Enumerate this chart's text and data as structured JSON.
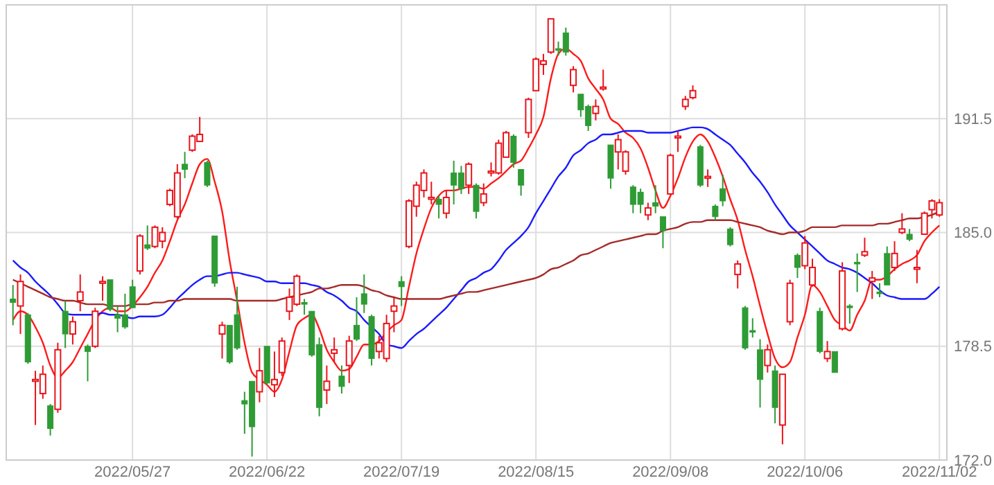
{
  "chart_data": {
    "type": "candlestick",
    "categories": [
      null,
      null,
      null,
      null,
      null,
      null,
      null,
      null,
      null,
      null,
      null,
      null,
      null,
      null,
      null,
      null,
      "2022/05/27",
      null,
      null,
      null,
      null,
      null,
      null,
      null,
      null,
      null,
      null,
      null,
      null,
      null,
      null,
      null,
      null,
      null,
      "2022/06/22",
      null,
      null,
      null,
      null,
      null,
      null,
      null,
      null,
      null,
      null,
      null,
      null,
      null,
      null,
      null,
      null,
      null,
      "2022/07/19",
      null,
      null,
      null,
      null,
      null,
      null,
      null,
      null,
      null,
      null,
      null,
      null,
      null,
      null,
      null,
      null,
      null,
      "2022/08/15",
      null,
      null,
      null,
      null,
      null,
      null,
      null,
      null,
      null,
      null,
      null,
      null,
      null,
      null,
      null,
      null,
      null,
      "2022/09/08",
      null,
      null,
      null,
      null,
      null,
      null,
      null,
      null,
      null,
      null,
      null,
      null,
      null,
      null,
      null,
      null,
      null,
      "2022/10/06",
      null,
      null,
      null,
      null,
      null,
      null,
      null,
      null,
      null,
      null,
      null,
      null,
      null,
      null,
      null,
      null,
      null,
      "2022/11/02"
    ],
    "ohlc": [
      [
        181.2,
        182.0,
        179.7,
        181.0
      ],
      [
        180.8,
        182.6,
        179.2,
        182.2
      ],
      [
        180.3,
        180.4,
        177.5,
        177.6
      ],
      [
        176.5,
        177.1,
        174.0,
        176.6
      ],
      [
        175.8,
        177.4,
        175.5,
        176.9
      ],
      [
        175.1,
        175.2,
        173.4,
        173.8
      ],
      [
        174.9,
        178.7,
        174.7,
        178.3
      ],
      [
        180.5,
        181.1,
        178.4,
        179.2
      ],
      [
        179.2,
        180.2,
        178.6,
        179.9
      ],
      [
        181.1,
        182.6,
        180.5,
        181.6
      ],
      [
        178.5,
        178.6,
        176.5,
        178.2
      ],
      [
        178.5,
        180.7,
        178.4,
        180.5
      ],
      [
        182.1,
        182.5,
        181.1,
        182.2
      ],
      [
        182.3,
        182.3,
        180.5,
        180.6
      ],
      [
        180.3,
        180.8,
        179.3,
        180.1
      ],
      [
        180.3,
        181.5,
        179.5,
        179.6
      ],
      [
        181.9,
        182.3,
        180.7,
        180.7
      ],
      [
        182.8,
        184.9,
        182.6,
        184.8
      ],
      [
        184.3,
        185.4,
        184.0,
        184.1
      ],
      [
        184.2,
        185.4,
        184.1,
        185.3
      ],
      [
        184.5,
        185.3,
        184.1,
        185.0
      ],
      [
        186.6,
        187.5,
        186.5,
        187.4
      ],
      [
        185.9,
        188.9,
        185.8,
        188.4
      ],
      [
        188.9,
        189.6,
        188.1,
        188.6
      ],
      [
        189.7,
        190.6,
        189.6,
        190.5
      ],
      [
        190.2,
        191.6,
        190.2,
        190.6
      ],
      [
        189.0,
        189.1,
        187.6,
        187.7
      ],
      [
        184.8,
        184.8,
        181.9,
        182.1
      ],
      [
        179.2,
        179.9,
        177.8,
        179.7
      ],
      [
        179.7,
        179.7,
        177.5,
        177.6
      ],
      [
        180.3,
        181.9,
        178.3,
        178.4
      ],
      [
        175.4,
        175.9,
        173.5,
        175.2
      ],
      [
        176.5,
        176.5,
        172.2,
        173.9
      ],
      [
        175.9,
        178.4,
        175.3,
        177.1
      ],
      [
        178.5,
        178.5,
        176.3,
        176.4
      ],
      [
        176.3,
        178.2,
        175.6,
        176.6
      ],
      [
        177.0,
        179.0,
        176.8,
        178.8
      ],
      [
        180.5,
        181.8,
        180.0,
        181.3
      ],
      [
        180.9,
        182.6,
        180.8,
        182.5
      ],
      [
        181.0,
        181.2,
        180.3,
        180.9
      ],
      [
        180.5,
        180.5,
        177.9,
        178.0
      ],
      [
        178.6,
        179.0,
        174.5,
        175.0
      ],
      [
        176.0,
        177.4,
        175.2,
        176.5
      ],
      [
        178.1,
        179.0,
        177.6,
        178.3
      ],
      [
        176.8,
        177.4,
        175.8,
        176.2
      ],
      [
        177.4,
        179.1,
        176.4,
        178.8
      ],
      [
        179.7,
        181.3,
        178.8,
        178.9
      ],
      [
        181.5,
        182.6,
        180.4,
        180.9
      ],
      [
        180.2,
        180.3,
        177.4,
        177.8
      ],
      [
        178.2,
        179.1,
        177.8,
        178.7
      ],
      [
        177.8,
        180.3,
        177.6,
        179.8
      ],
      [
        180.5,
        181.3,
        179.3,
        180.8
      ],
      [
        182.2,
        182.5,
        180.8,
        181.9
      ],
      [
        184.2,
        186.9,
        184.1,
        186.8
      ],
      [
        186.5,
        187.9,
        185.9,
        187.7
      ],
      [
        187.4,
        188.6,
        187.0,
        188.4
      ],
      [
        186.9,
        187.9,
        186.6,
        187.0
      ],
      [
        186.9,
        187.1,
        185.8,
        186.6
      ],
      [
        186.1,
        187.4,
        185.8,
        187.0
      ],
      [
        188.4,
        189.1,
        186.6,
        187.7
      ],
      [
        188.4,
        188.8,
        187.2,
        187.5
      ],
      [
        187.7,
        189.0,
        187.2,
        188.9
      ],
      [
        187.7,
        187.8,
        185.8,
        186.2
      ],
      [
        186.7,
        187.8,
        186.5,
        187.2
      ],
      [
        188.4,
        189.0,
        188.2,
        188.5
      ],
      [
        188.4,
        190.3,
        188.3,
        190.1
      ],
      [
        189.3,
        190.8,
        189.3,
        190.7
      ],
      [
        190.5,
        190.6,
        188.7,
        189.0
      ],
      [
        188.6,
        188.6,
        187.1,
        187.7
      ],
      [
        190.7,
        192.7,
        190.4,
        192.6
      ],
      [
        193.1,
        195.0,
        193.1,
        194.9
      ],
      [
        194.6,
        195.2,
        194.0,
        194.8
      ],
      [
        195.3,
        197.2,
        195.2,
        197.2
      ],
      [
        195.5,
        195.9,
        195.1,
        195.4
      ],
      [
        196.4,
        196.7,
        195.1,
        195.3
      ],
      [
        193.4,
        194.5,
        193.0,
        194.3
      ],
      [
        192.9,
        192.9,
        191.6,
        192.0
      ],
      [
        192.2,
        192.3,
        190.8,
        191.1
      ],
      [
        191.8,
        192.6,
        191.4,
        192.2
      ],
      [
        193.2,
        194.3,
        193.1,
        193.3
      ],
      [
        190.0,
        190.0,
        187.5,
        188.1
      ],
      [
        189.6,
        190.6,
        188.6,
        190.3
      ],
      [
        188.5,
        189.7,
        188.3,
        189.6
      ],
      [
        187.6,
        187.7,
        186.1,
        186.6
      ],
      [
        187.3,
        187.5,
        186.1,
        186.6
      ],
      [
        186.0,
        186.7,
        185.7,
        186.4
      ],
      [
        186.7,
        187.7,
        186.1,
        186.5
      ],
      [
        185.9,
        185.9,
        184.1,
        185.1
      ],
      [
        187.2,
        189.5,
        187.2,
        189.4
      ],
      [
        190.4,
        190.8,
        189.6,
        190.5
      ],
      [
        192.2,
        192.8,
        192.0,
        192.6
      ],
      [
        192.7,
        193.4,
        192.6,
        193.1
      ],
      [
        189.9,
        190.0,
        187.6,
        187.7
      ],
      [
        188.1,
        188.6,
        187.6,
        188.2
      ],
      [
        186.5,
        186.6,
        185.7,
        185.9
      ],
      [
        187.5,
        188.3,
        186.5,
        186.8
      ],
      [
        185.2,
        185.3,
        184.2,
        184.3
      ],
      [
        182.6,
        183.4,
        181.8,
        183.2
      ],
      [
        180.7,
        180.8,
        178.3,
        178.4
      ],
      [
        179.4,
        180.1,
        179.0,
        179.3
      ],
      [
        178.3,
        178.9,
        175.0,
        176.6
      ],
      [
        177.4,
        178.6,
        177.0,
        178.3
      ],
      [
        177.1,
        177.4,
        174.1,
        175.0
      ],
      [
        174.0,
        176.9,
        172.9,
        176.9
      ],
      [
        179.9,
        182.3,
        179.7,
        182.1
      ],
      [
        183.7,
        183.8,
        182.4,
        183.0
      ],
      [
        183.1,
        184.8,
        182.9,
        184.4
      ],
      [
        182.0,
        183.5,
        181.9,
        183.0
      ],
      [
        180.5,
        180.7,
        178.1,
        178.2
      ],
      [
        177.8,
        178.8,
        177.6,
        178.2
      ],
      [
        178.2,
        178.2,
        177.0,
        177.0
      ],
      [
        179.5,
        183.3,
        179.4,
        182.8
      ],
      [
        180.8,
        180.9,
        179.8,
        180.7
      ],
      [
        183.3,
        183.8,
        181.6,
        183.2
      ],
      [
        183.7,
        184.7,
        183.6,
        183.9
      ],
      [
        182.2,
        182.8,
        181.2,
        182.4
      ],
      [
        181.6,
        182.1,
        181.3,
        181.5
      ],
      [
        183.8,
        184.2,
        182.0,
        182.0
      ],
      [
        183.0,
        184.5,
        182.8,
        183.8
      ],
      [
        185.0,
        186.1,
        184.9,
        185.2
      ],
      [
        184.9,
        185.2,
        184.5,
        184.6
      ],
      [
        182.9,
        184.0,
        182.1,
        183.0
      ],
      [
        184.9,
        186.2,
        184.9,
        186.1
      ],
      [
        186.3,
        186.9,
        185.8,
        186.8
      ],
      [
        186.0,
        186.9,
        185.9,
        186.7
      ]
    ],
    "colors": [
      "#2e9b35",
      "#e8141b",
      "#2e9b35",
      "#e8141b",
      "#e8141b",
      "#2e9b35",
      "#e8141b",
      "#2e9b35",
      "#e8141b",
      "#e8141b",
      "#2e9b35",
      "#e8141b",
      "#e8141b",
      "#2e9b35",
      "#2e9b35",
      "#2e9b35",
      "#2e9b35",
      "#e8141b",
      "#2e9b35",
      "#e8141b",
      "#e8141b",
      "#e8141b",
      "#e8141b",
      "#2e9b35",
      "#e8141b",
      "#e8141b",
      "#2e9b35",
      "#2e9b35",
      "#e8141b",
      "#2e9b35",
      "#2e9b35",
      "#2e9b35",
      "#2e9b35",
      "#e8141b",
      "#2e9b35",
      "#e8141b",
      "#e8141b",
      "#e8141b",
      "#e8141b",
      "#2e9b35",
      "#2e9b35",
      "#2e9b35",
      "#e8141b",
      "#e8141b",
      "#2e9b35",
      "#e8141b",
      "#2e9b35",
      "#2e9b35",
      "#2e9b35",
      "#e8141b",
      "#e8141b",
      "#e8141b",
      "#2e9b35",
      "#e8141b",
      "#e8141b",
      "#e8141b",
      "#e8141b",
      "#2e9b35",
      "#e8141b",
      "#2e9b35",
      "#2e9b35",
      "#e8141b",
      "#2e9b35",
      "#e8141b",
      "#e8141b",
      "#e8141b",
      "#e8141b",
      "#2e9b35",
      "#2e9b35",
      "#e8141b",
      "#e8141b",
      "#e8141b",
      "#e8141b",
      "#2e9b35",
      "#2e9b35",
      "#e8141b",
      "#2e9b35",
      "#2e9b35",
      "#e8141b",
      "#e8141b",
      "#2e9b35",
      "#e8141b",
      "#e8141b",
      "#2e9b35",
      "#2e9b35",
      "#e8141b",
      "#2e9b35",
      "#2e9b35",
      "#e8141b",
      "#e8141b",
      "#e8141b",
      "#e8141b",
      "#2e9b35",
      "#e8141b",
      "#2e9b35",
      "#2e9b35",
      "#2e9b35",
      "#e8141b",
      "#2e9b35",
      "#2e9b35",
      "#2e9b35",
      "#e8141b",
      "#2e9b35",
      "#e8141b",
      "#e8141b",
      "#2e9b35",
      "#e8141b",
      "#e8141b",
      "#2e9b35",
      "#e8141b",
      "#2e9b35",
      "#e8141b",
      "#2e9b35",
      "#2e9b35",
      "#e8141b",
      "#e8141b",
      "#2e9b35",
      "#2e9b35",
      "#e8141b",
      "#e8141b",
      "#2e9b35",
      "#e8141b",
      "#e8141b",
      "#e8141b",
      "#e8141b"
    ],
    "series": [
      {
        "type": "line",
        "color": "#ff1a1a",
        "values": [
          180.0,
          180.5,
          180.3,
          179.6,
          178.7,
          177.4,
          176.7,
          177.1,
          177.6,
          178.4,
          179.2,
          180.0,
          180.5,
          180.7,
          180.5,
          180.5,
          180.8,
          181.3,
          181.9,
          182.7,
          183.4,
          184.5,
          185.7,
          186.6,
          187.8,
          188.9,
          189.2,
          187.9,
          186.2,
          183.4,
          181.1,
          178.7,
          177.0,
          176.6,
          176.3,
          175.9,
          176.6,
          178.2,
          179.7,
          180.1,
          180.3,
          179.5,
          178.3,
          177.6,
          177.1,
          177.2,
          177.9,
          178.6,
          178.6,
          178.8,
          179.3,
          179.7,
          180.0,
          181.9,
          183.8,
          185.2,
          186.4,
          187.1,
          187.4,
          187.4,
          187.5,
          187.6,
          187.6,
          187.5,
          187.8,
          188.1,
          188.5,
          188.9,
          189.1,
          189.8,
          190.6,
          191.6,
          193.8,
          195.2,
          195.5,
          195.2,
          194.8,
          193.8,
          193.2,
          192.6,
          191.5,
          191.2,
          190.7,
          190.4,
          189.8,
          188.7,
          187.4,
          186.4,
          187.1,
          188.1,
          189.3,
          190.2,
          190.6,
          190.2,
          189.3,
          188.2,
          186.9,
          185.7,
          184.0,
          182.5,
          180.8,
          179.2,
          177.8,
          177.3,
          177.6,
          179.0,
          180.3,
          182.0,
          181.6,
          180.8,
          180.0,
          179.7,
          179.4,
          180.3,
          181.1,
          182.3,
          182.3,
          182.5,
          182.9,
          183.2,
          183.4,
          183.7,
          184.5,
          185.0,
          185.4
        ]
      },
      {
        "type": "line",
        "color": "#1a1aff",
        "values": [
          183.4,
          183.0,
          182.7,
          182.2,
          181.8,
          181.4,
          180.9,
          180.4,
          180.3,
          180.3,
          180.3,
          180.3,
          180.4,
          180.3,
          180.3,
          180.2,
          180.1,
          180.2,
          180.2,
          180.2,
          180.3,
          180.7,
          181.2,
          181.6,
          182.0,
          182.3,
          182.5,
          182.5,
          182.6,
          182.7,
          182.7,
          182.6,
          182.5,
          182.4,
          182.2,
          182.2,
          182.1,
          182.1,
          182.1,
          182.1,
          182.0,
          181.9,
          181.6,
          181.4,
          181.1,
          180.7,
          180.5,
          180.0,
          179.6,
          179.2,
          178.6,
          178.5,
          178.4,
          178.8,
          179.2,
          179.5,
          179.9,
          180.3,
          180.7,
          181.2,
          181.7,
          182.2,
          182.4,
          182.7,
          182.9,
          183.4,
          184.0,
          184.4,
          184.8,
          185.3,
          186.1,
          186.8,
          187.5,
          188.2,
          188.7,
          189.4,
          189.7,
          190.1,
          190.3,
          190.6,
          190.6,
          190.7,
          190.8,
          190.8,
          190.8,
          190.7,
          190.7,
          190.7,
          190.7,
          190.8,
          190.9,
          191.0,
          191.0,
          190.9,
          190.6,
          190.3,
          190.0,
          189.5,
          189.0,
          188.4,
          187.9,
          187.3,
          186.6,
          186.0,
          185.4,
          185.0,
          184.6,
          184.2,
          183.8,
          183.4,
          183.2,
          183.0,
          182.9,
          182.7,
          182.4,
          182.1,
          181.7,
          181.4,
          181.3,
          181.2,
          181.2,
          181.2,
          181.2,
          181.5,
          181.9
        ]
      },
      {
        "type": "line",
        "color": "#a52a2a",
        "values": [
          182.3,
          182.1,
          181.9,
          181.7,
          181.5,
          181.3,
          181.2,
          181.1,
          181.1,
          181.0,
          180.9,
          180.9,
          180.9,
          180.8,
          180.8,
          180.8,
          180.9,
          180.9,
          180.9,
          181.0,
          181.0,
          181.1,
          181.1,
          181.2,
          181.2,
          181.2,
          181.2,
          181.2,
          181.2,
          181.2,
          181.1,
          181.1,
          181.1,
          181.1,
          181.1,
          181.1,
          181.2,
          181.3,
          181.4,
          181.5,
          181.6,
          181.8,
          181.8,
          181.9,
          182.0,
          182.0,
          182.0,
          181.9,
          181.7,
          181.6,
          181.4,
          181.3,
          181.2,
          181.2,
          181.2,
          181.2,
          181.2,
          181.2,
          181.3,
          181.4,
          181.5,
          181.6,
          181.6,
          181.7,
          181.8,
          181.9,
          182.0,
          182.1,
          182.2,
          182.3,
          182.4,
          182.6,
          182.9,
          183.0,
          183.2,
          183.4,
          183.7,
          183.8,
          184.0,
          184.2,
          184.4,
          184.5,
          184.6,
          184.7,
          184.8,
          184.9,
          184.9,
          185.1,
          185.2,
          185.3,
          185.5,
          185.6,
          185.6,
          185.7,
          185.7,
          185.7,
          185.7,
          185.6,
          185.5,
          185.4,
          185.3,
          185.1,
          185.0,
          184.9,
          185.0,
          185.0,
          185.1,
          185.3,
          185.3,
          185.3,
          185.3,
          185.4,
          185.4,
          185.4,
          185.4,
          185.4,
          185.5,
          185.5,
          185.6,
          185.7,
          185.8,
          185.8,
          185.9,
          186.0,
          186.2
        ]
      }
    ],
    "ylim": [
      172,
      198
    ],
    "yticks": [
      {
        "value": 172,
        "label": "172.0"
      },
      {
        "value": 178.5,
        "label": "178.5"
      },
      {
        "value": 185,
        "label": "185.0"
      },
      {
        "value": 191.5,
        "label": "191.5"
      }
    ],
    "grid": true
  }
}
